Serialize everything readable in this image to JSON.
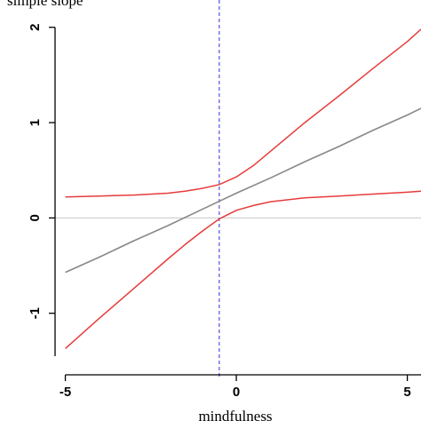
{
  "chart_data": {
    "type": "line",
    "title": "simple slope",
    "xlabel": "mindfulness",
    "ylabel": "",
    "xlim": [
      -5.3,
      5.4
    ],
    "ylim": [
      -1.45,
      2.1
    ],
    "x_ticks": [
      -5,
      0,
      5
    ],
    "y_ticks": [
      -1,
      0,
      1,
      2
    ],
    "grid": false,
    "legend": "none",
    "reference_lines": [
      {
        "name": "",
        "axis": "y",
        "value": 0,
        "color": "#d3d3d3",
        "style": "solid"
      },
      {
        "name": "",
        "axis": "x",
        "value": -0.5,
        "color": "#6a6ae8",
        "style": "dashed"
      }
    ],
    "series": [
      {
        "color": "#888888",
        "x": [
          -5,
          -4,
          -3,
          -2,
          -1,
          0,
          1,
          2,
          3,
          4,
          5,
          5.4
        ],
        "y": [
          -0.57,
          -0.41,
          -0.24,
          -0.08,
          0.09,
          0.26,
          0.42,
          0.59,
          0.75,
          0.92,
          1.08,
          1.15
        ]
      },
      {
        "color": "#e63c3c",
        "x": [
          -5,
          -4,
          -3,
          -2,
          -1.5,
          -1,
          -0.5,
          0,
          0.5,
          1,
          2,
          3,
          4,
          5,
          5.4
        ],
        "y": [
          0.22,
          0.23,
          0.24,
          0.26,
          0.28,
          0.31,
          0.35,
          0.43,
          0.55,
          0.7,
          1.0,
          1.28,
          1.57,
          1.85,
          1.98
        ]
      },
      {
        "color": "#e63c3c",
        "x": [
          -5,
          -4,
          -3,
          -2,
          -1.5,
          -1,
          -0.5,
          0,
          0.5,
          1,
          2,
          3,
          4,
          5,
          5.4
        ],
        "y": [
          -1.37,
          -1.05,
          -0.74,
          -0.43,
          -0.28,
          -0.14,
          -0.01,
          0.08,
          0.13,
          0.17,
          0.21,
          0.23,
          0.25,
          0.27,
          0.28
        ]
      }
    ]
  }
}
